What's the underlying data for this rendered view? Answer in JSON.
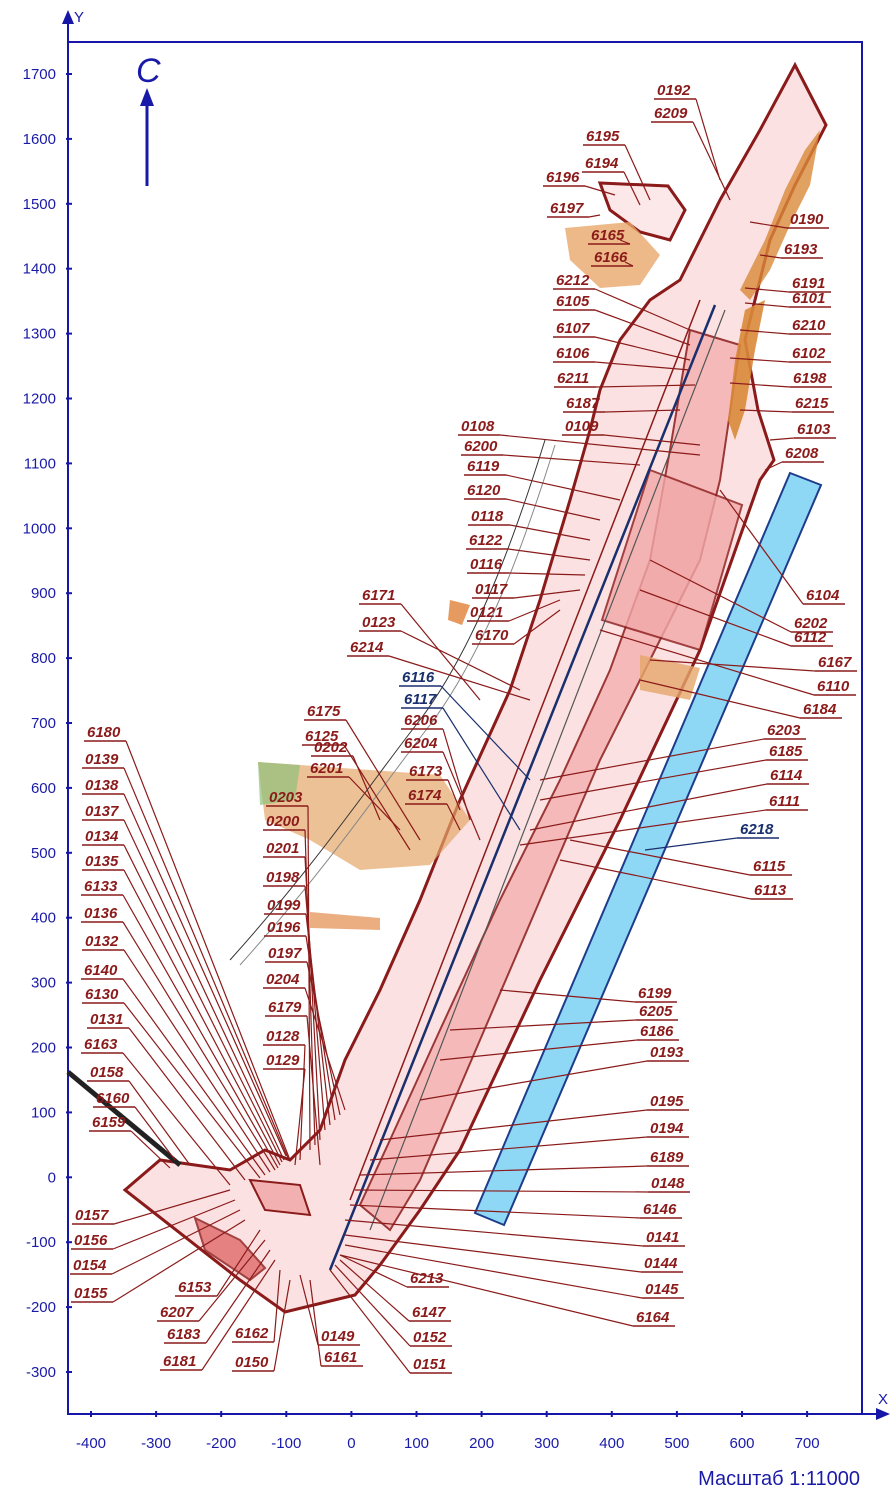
{
  "axes": {
    "y_label": "Y",
    "x_label": "X",
    "y_ticks": [
      "1700",
      "1600",
      "1500",
      "1400",
      "1300",
      "1200",
      "1100",
      "1000",
      "900",
      "800",
      "700",
      "600",
      "500",
      "400",
      "300",
      "200",
      "100",
      "0",
      "-100",
      "-200",
      "-300"
    ],
    "x_ticks": [
      "-400",
      "-300",
      "-200",
      "-100",
      "0",
      "100",
      "200",
      "300",
      "400",
      "500",
      "600",
      "700"
    ]
  },
  "north_label": "С",
  "scale_text": "Масштаб  1:11000",
  "colors": {
    "frame": "#1616a8",
    "outline": "#8b1a1a",
    "fill": "#f6c6c6",
    "blue_zone": "#8fd8f5",
    "ink_blue": "#1a2f6e"
  },
  "labels_top_right": [
    "0192",
    "6209",
    "6195",
    "6194",
    "6196",
    "6197",
    "6165",
    "6166",
    "0190",
    "6193",
    "6191",
    "6101",
    "6212",
    "6105",
    "6210",
    "6107",
    "6106",
    "6102",
    "6211",
    "6198",
    "6187",
    "6215",
    "0109",
    "6103",
    "0108",
    "6208",
    "6200",
    "6119",
    "6120",
    "0118",
    "6122",
    "0116",
    "6104",
    "0117",
    "6202",
    "6171",
    "0121",
    "6112",
    "0123",
    "6170",
    "6167",
    "6214",
    "6110",
    "6184"
  ],
  "labels_middle": [
    "6116",
    "6117",
    "6175",
    "6125",
    "0202",
    "6206",
    "6204",
    "6201",
    "6173",
    "6174",
    "6203",
    "6185",
    "6114",
    "6111",
    "6218",
    "6115",
    "6113"
  ],
  "labels_left": [
    "6180",
    "0139",
    "0138",
    "0137",
    "0134",
    "0135",
    "6133",
    "0136",
    "0132",
    "6140",
    "6130",
    "0131",
    "6163",
    "0158",
    "6160",
    "6159",
    "0203",
    "0200",
    "0201",
    "0198",
    "0199",
    "0196",
    "0197",
    "0204",
    "6179",
    "0128",
    "0129"
  ],
  "labels_bottom_right": [
    "6199",
    "6205",
    "6186",
    "0193",
    "0195",
    "0194",
    "6189",
    "0148",
    "6146",
    "0141",
    "0144",
    "0145",
    "6164",
    "6213",
    "6147",
    "0152",
    "0151"
  ],
  "labels_bottom_left": [
    "0157",
    "0156",
    "0154",
    "0155",
    "6153",
    "6207",
    "6183",
    "6162",
    "6181",
    "0150",
    "0149",
    "6161"
  ]
}
